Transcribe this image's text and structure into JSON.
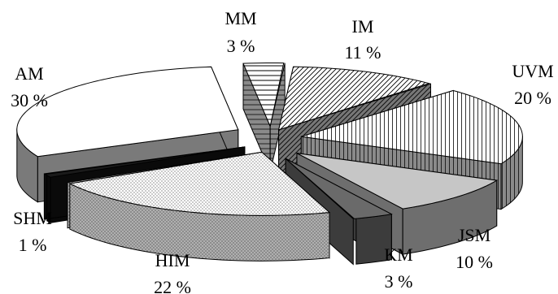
{
  "chart_data": {
    "type": "pie",
    "title": "",
    "style": "exploded-3d",
    "slices": [
      {
        "name": "MM",
        "value": 3,
        "label": "3 %",
        "pattern": "horizontal-stripes"
      },
      {
        "name": "IM",
        "value": 11,
        "label": "11 %",
        "pattern": "diagonal-hatch"
      },
      {
        "name": "UVM",
        "value": 20,
        "label": "20 %",
        "pattern": "vertical-stripes"
      },
      {
        "name": "JSM",
        "value": 10,
        "label": "10 %",
        "pattern": "light-gray"
      },
      {
        "name": "KM",
        "value": 3,
        "label": "3 %",
        "pattern": "dark-gray"
      },
      {
        "name": "HIM",
        "value": 22,
        "label": "22 %",
        "pattern": "dots"
      },
      {
        "name": "SHM",
        "value": 1,
        "label": "1 %",
        "pattern": "black"
      },
      {
        "name": "AM",
        "value": 30,
        "label": "30 %",
        "pattern": "white"
      }
    ]
  }
}
